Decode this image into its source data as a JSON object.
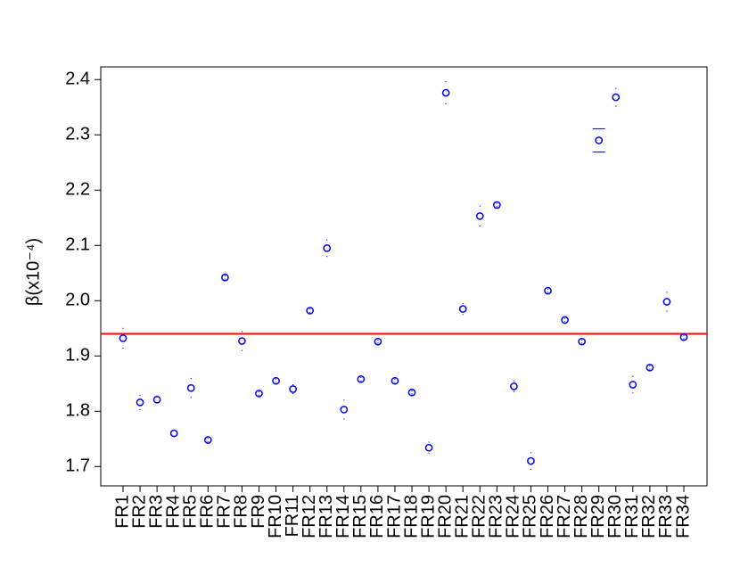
{
  "chart_data": {
    "type": "errorbar-scatter",
    "y_label": "β(x10⁻⁴)",
    "categories": [
      "FR1",
      "FR2",
      "FR3",
      "FR4",
      "FR5",
      "FR6",
      "FR7",
      "FR8",
      "FR9",
      "FR10",
      "FR11",
      "FR12",
      "FR13",
      "FR14",
      "FR15",
      "FR16",
      "FR17",
      "FR18",
      "FR19",
      "FR20",
      "FR21",
      "FR22",
      "FR23",
      "FR24",
      "FR25",
      "FR26",
      "FR27",
      "FR28",
      "FR29",
      "FR30",
      "FR31",
      "FR32",
      "FR33",
      "FR34"
    ],
    "values": [
      1.932,
      1.816,
      1.821,
      1.76,
      1.842,
      1.748,
      2.042,
      1.927,
      1.832,
      1.855,
      1.84,
      1.982,
      2.095,
      1.803,
      1.858,
      1.926,
      1.855,
      1.834,
      1.734,
      2.376,
      1.985,
      2.153,
      2.173,
      1.845,
      1.71,
      2.018,
      1.965,
      1.926,
      2.29,
      2.368,
      1.848,
      1.879,
      1.998,
      1.934
    ],
    "errors": [
      0.018,
      0.013,
      0.005,
      0.005,
      0.017,
      0.003,
      0.003,
      0.017,
      0.003,
      0.003,
      0.008,
      0.003,
      0.015,
      0.017,
      0.003,
      0.003,
      0.003,
      0.003,
      0.01,
      0.02,
      0.01,
      0.018,
      0.003,
      0.01,
      0.015,
      0.003,
      0.003,
      0.003,
      0.021,
      0.016,
      0.015,
      0.003,
      0.017,
      0.003
    ],
    "color": "#0000ff",
    "reference_line": {
      "value": 1.94,
      "color": "#ff0000"
    },
    "ylim": [
      1.665,
      2.423
    ],
    "yticks": [
      {
        "value": 1.7,
        "label": "1.7"
      },
      {
        "value": 1.8,
        "label": "1.8"
      },
      {
        "value": 1.9,
        "label": "1.9"
      },
      {
        "value": 2.0,
        "label": "2.0"
      },
      {
        "value": 2.1,
        "label": "2.1"
      },
      {
        "value": 2.2,
        "label": "2.2"
      },
      {
        "value": 2.3,
        "label": "2.3"
      },
      {
        "value": 2.4,
        "label": "2.4"
      }
    ]
  }
}
